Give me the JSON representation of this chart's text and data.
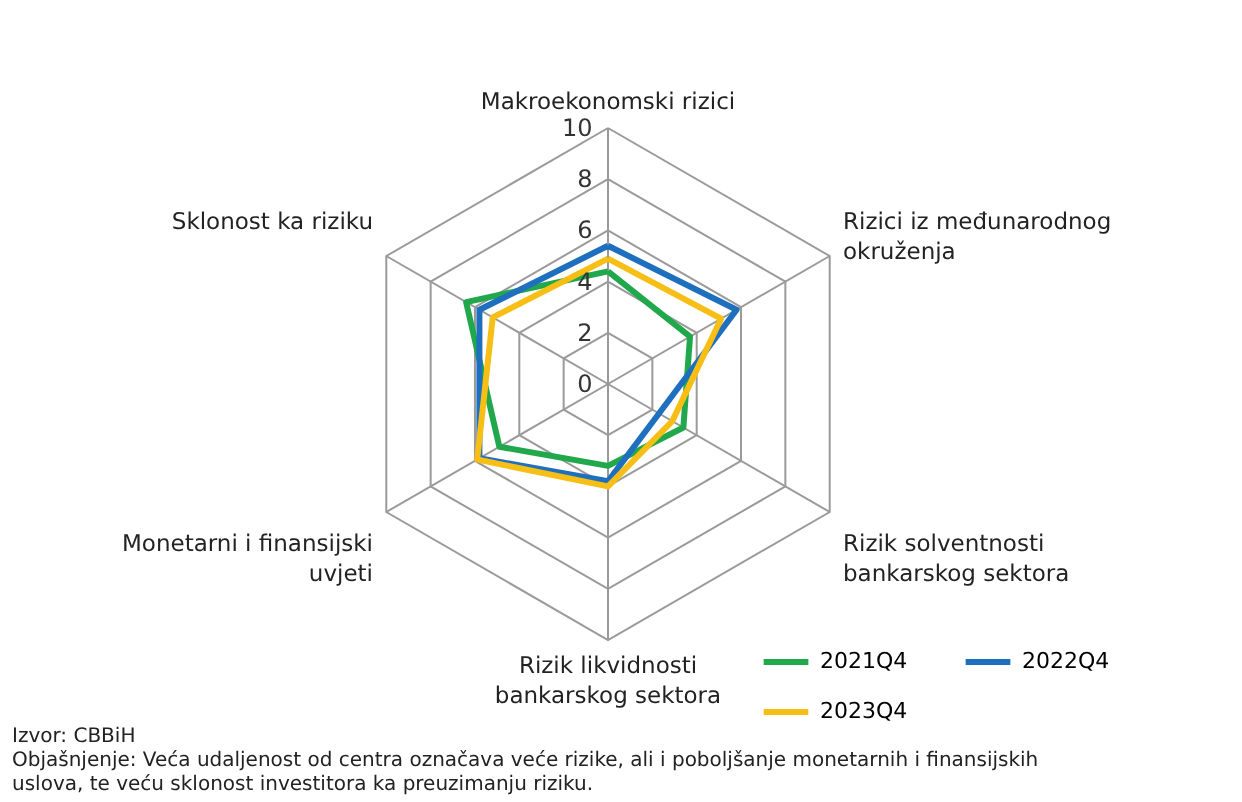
{
  "chart_data": {
    "type": "radar",
    "categories": [
      "Makroekonomski rizici",
      "Rizici iz međunarodnog okruženja",
      "Rizik solventnosti bankarskog sektora",
      "Rizik likvidnosti bankarskog sektora",
      "Monetarni i finansijski uvjeti",
      "Sklonost ka riziku"
    ],
    "series": [
      {
        "name": "2021Q4",
        "color": "#22a84c",
        "values": [
          4.4,
          3.7,
          3.4,
          3.2,
          4.9,
          6.4
        ]
      },
      {
        "name": "2022Q4",
        "color": "#1f6fbf",
        "values": [
          5.4,
          5.8,
          2.3,
          3.8,
          5.8,
          5.8
        ]
      },
      {
        "name": "2023Q4",
        "color": "#f7be16",
        "values": [
          4.9,
          5.1,
          2.9,
          4.0,
          5.9,
          5.2
        ]
      }
    ],
    "ylim": [
      0,
      10
    ],
    "yticks": [
      0,
      2,
      4,
      6,
      8,
      10
    ],
    "grid": true,
    "legend": "bottom right",
    "annotations": [
      "Izvor: CBBiH",
      "Objašnjenje: Veća udaljenost od centra označava veće rizike, ali i poboljšanje monetarnih i finansijskih uslova, te veću sklonost investitora ka preuzimanju riziku."
    ]
  }
}
